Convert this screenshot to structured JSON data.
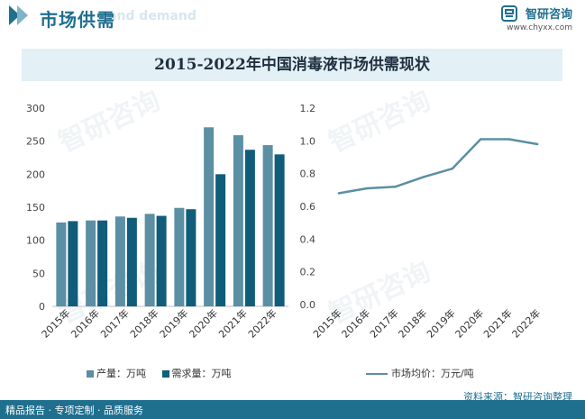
{
  "header": {
    "title": "市场供需",
    "ghost_text": "and demand"
  },
  "brand": {
    "name": "智研咨询",
    "url": "www.chyxx.com"
  },
  "watermark": "智研咨询",
  "colors": {
    "supply": "#5b8fa3",
    "demand": "#0f5d7a",
    "price": "#5b8fa3",
    "accent": "#1f6f8f",
    "band": "#e3f0f6"
  },
  "chart_data": [
    {
      "type": "bar",
      "title": "2015-2022年中国消毒液市场供需现状",
      "categories": [
        "2015年",
        "2016年",
        "2017年",
        "2018年",
        "2019年",
        "2020年",
        "2021年",
        "2022年"
      ],
      "series": [
        {
          "name": "产量：万吨",
          "values": [
            127,
            130,
            136,
            140,
            149,
            271,
            259,
            244
          ]
        },
        {
          "name": "需求量：万吨",
          "values": [
            129,
            130,
            134,
            137,
            147,
            200,
            237,
            230
          ]
        }
      ],
      "ylim": [
        0,
        300
      ],
      "yticks": [
        "0",
        "50",
        "100",
        "150",
        "200",
        "250",
        "300"
      ],
      "grid": false,
      "legend": "bottom"
    },
    {
      "type": "line",
      "categories": [
        "2015年",
        "2016年",
        "2017年",
        "2018年",
        "2019年",
        "2020年",
        "2021年",
        "2022年"
      ],
      "series": [
        {
          "name": "市场均价：万元/吨",
          "values": [
            0.68,
            0.71,
            0.72,
            0.78,
            0.83,
            1.01,
            1.01,
            0.98
          ]
        }
      ],
      "ylim": [
        0,
        1.2
      ],
      "yticks": [
        "0.0",
        "0.2",
        "0.4",
        "0.6",
        "0.8",
        "1.0",
        "1.2"
      ],
      "grid": false,
      "legend": "bottom"
    }
  ],
  "source_text": "资料来源：智研咨询整理",
  "footer_text": "精品报告 · 专项定制 · 品质服务"
}
